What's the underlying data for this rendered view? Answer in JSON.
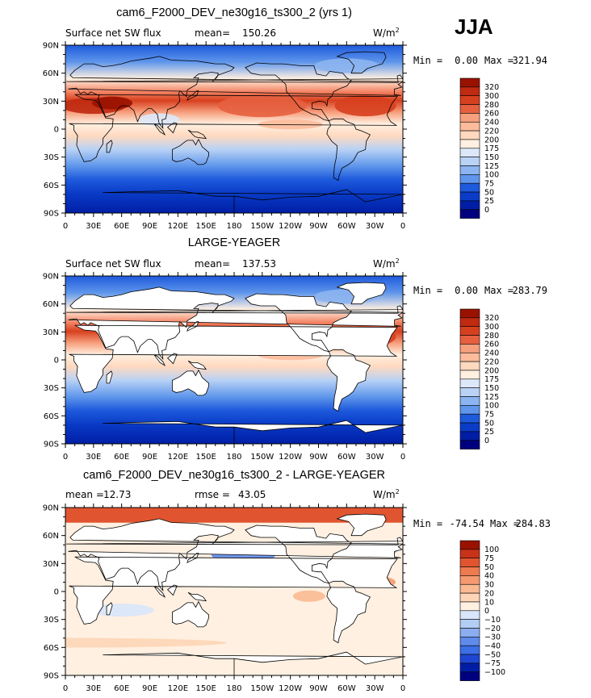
{
  "season": "JJA",
  "units": "W/m",
  "units_sup": "2",
  "colors": {
    "abs_scale": [
      "#00007f",
      "#001ea5",
      "#0a3cc8",
      "#1e5adc",
      "#3c78e6",
      "#5f96eb",
      "#8cb4f0",
      "#b9d2f5",
      "#dce8fa",
      "#fff0e1",
      "#ffd9bf",
      "#fcbb9b",
      "#f7a07e",
      "#f28060",
      "#e6603f",
      "#d7401f",
      "#bf2a10",
      "#991200"
    ],
    "diff_scale": [
      "#00007f",
      "#001ea5",
      "#1e46d2",
      "#3c6ee6",
      "#5f8ceb",
      "#8caef0",
      "#b4cdf5",
      "#d8e5fa",
      "#fff0e1",
      "#fdd5b6",
      "#faba91",
      "#f59a70",
      "#ee7a50",
      "#e05530",
      "#c83218",
      "#991200"
    ],
    "coast": "#000000",
    "land": "#ffffff"
  },
  "chart_data": [
    {
      "type": "heatmap",
      "title": "cam6_F2000_DEV_ne30g16_ts300_2 (yrs 1)",
      "left_label": "Surface net SW flux",
      "stat1_label": "mean=",
      "stat1_value": "150.26",
      "min_label": "Min =",
      "min_value": "0.00",
      "max_label": "Max =",
      "max_value": "321.94",
      "x_ticks": [
        "0",
        "30E",
        "60E",
        "90E",
        "120E",
        "150E",
        "180",
        "150W",
        "120W",
        "90W",
        "60W",
        "30W",
        "0"
      ],
      "y_ticks": [
        "90N",
        "60N",
        "30N",
        "0",
        "30S",
        "60S",
        "90S"
      ],
      "colorbar_levels": [
        "320",
        "300",
        "280",
        "260",
        "240",
        "220",
        "200",
        "175",
        "150",
        "125",
        "100",
        "75",
        "50",
        "25",
        "0"
      ],
      "land_masked": false
    },
    {
      "type": "heatmap",
      "title": "LARGE-YEAGER",
      "left_label": "Surface net SW flux",
      "stat1_label": "mean=",
      "stat1_value": "137.53",
      "min_label": "Min =",
      "min_value": "0.00",
      "max_label": "Max =",
      "max_value": "283.79",
      "x_ticks": [
        "0",
        "30E",
        "60E",
        "90E",
        "120E",
        "150E",
        "180",
        "150W",
        "120W",
        "90W",
        "60W",
        "30W",
        "0"
      ],
      "y_ticks": [
        "90N",
        "60N",
        "30N",
        "0",
        "30S",
        "60S",
        "90S"
      ],
      "colorbar_levels": [
        "320",
        "300",
        "280",
        "260",
        "240",
        "220",
        "200",
        "175",
        "150",
        "125",
        "100",
        "75",
        "50",
        "25",
        "0"
      ],
      "land_masked": true
    },
    {
      "type": "heatmap",
      "title": "cam6_F2000_DEV_ne30g16_ts300_2 - LARGE-YEAGER",
      "left_label": "mean =",
      "left_value": "12.73",
      "stat1_label": "rmse =",
      "stat1_value": "43.05",
      "min_label": "Min =",
      "min_value": "-74.54",
      "max_label": "Max =",
      "max_value": "284.83",
      "x_ticks": [
        "0",
        "30E",
        "60E",
        "90E",
        "120E",
        "150E",
        "180",
        "150W",
        "120W",
        "90W",
        "60W",
        "30W",
        "0"
      ],
      "y_ticks": [
        "90N",
        "60N",
        "30N",
        "0",
        "30S",
        "60S",
        "90S"
      ],
      "colorbar_levels": [
        "100",
        "75",
        "50",
        "40",
        "30",
        "20",
        "10",
        "0",
        "−10",
        "−20",
        "−30",
        "−40",
        "−50",
        "−75",
        "−100"
      ],
      "land_masked": true
    }
  ]
}
